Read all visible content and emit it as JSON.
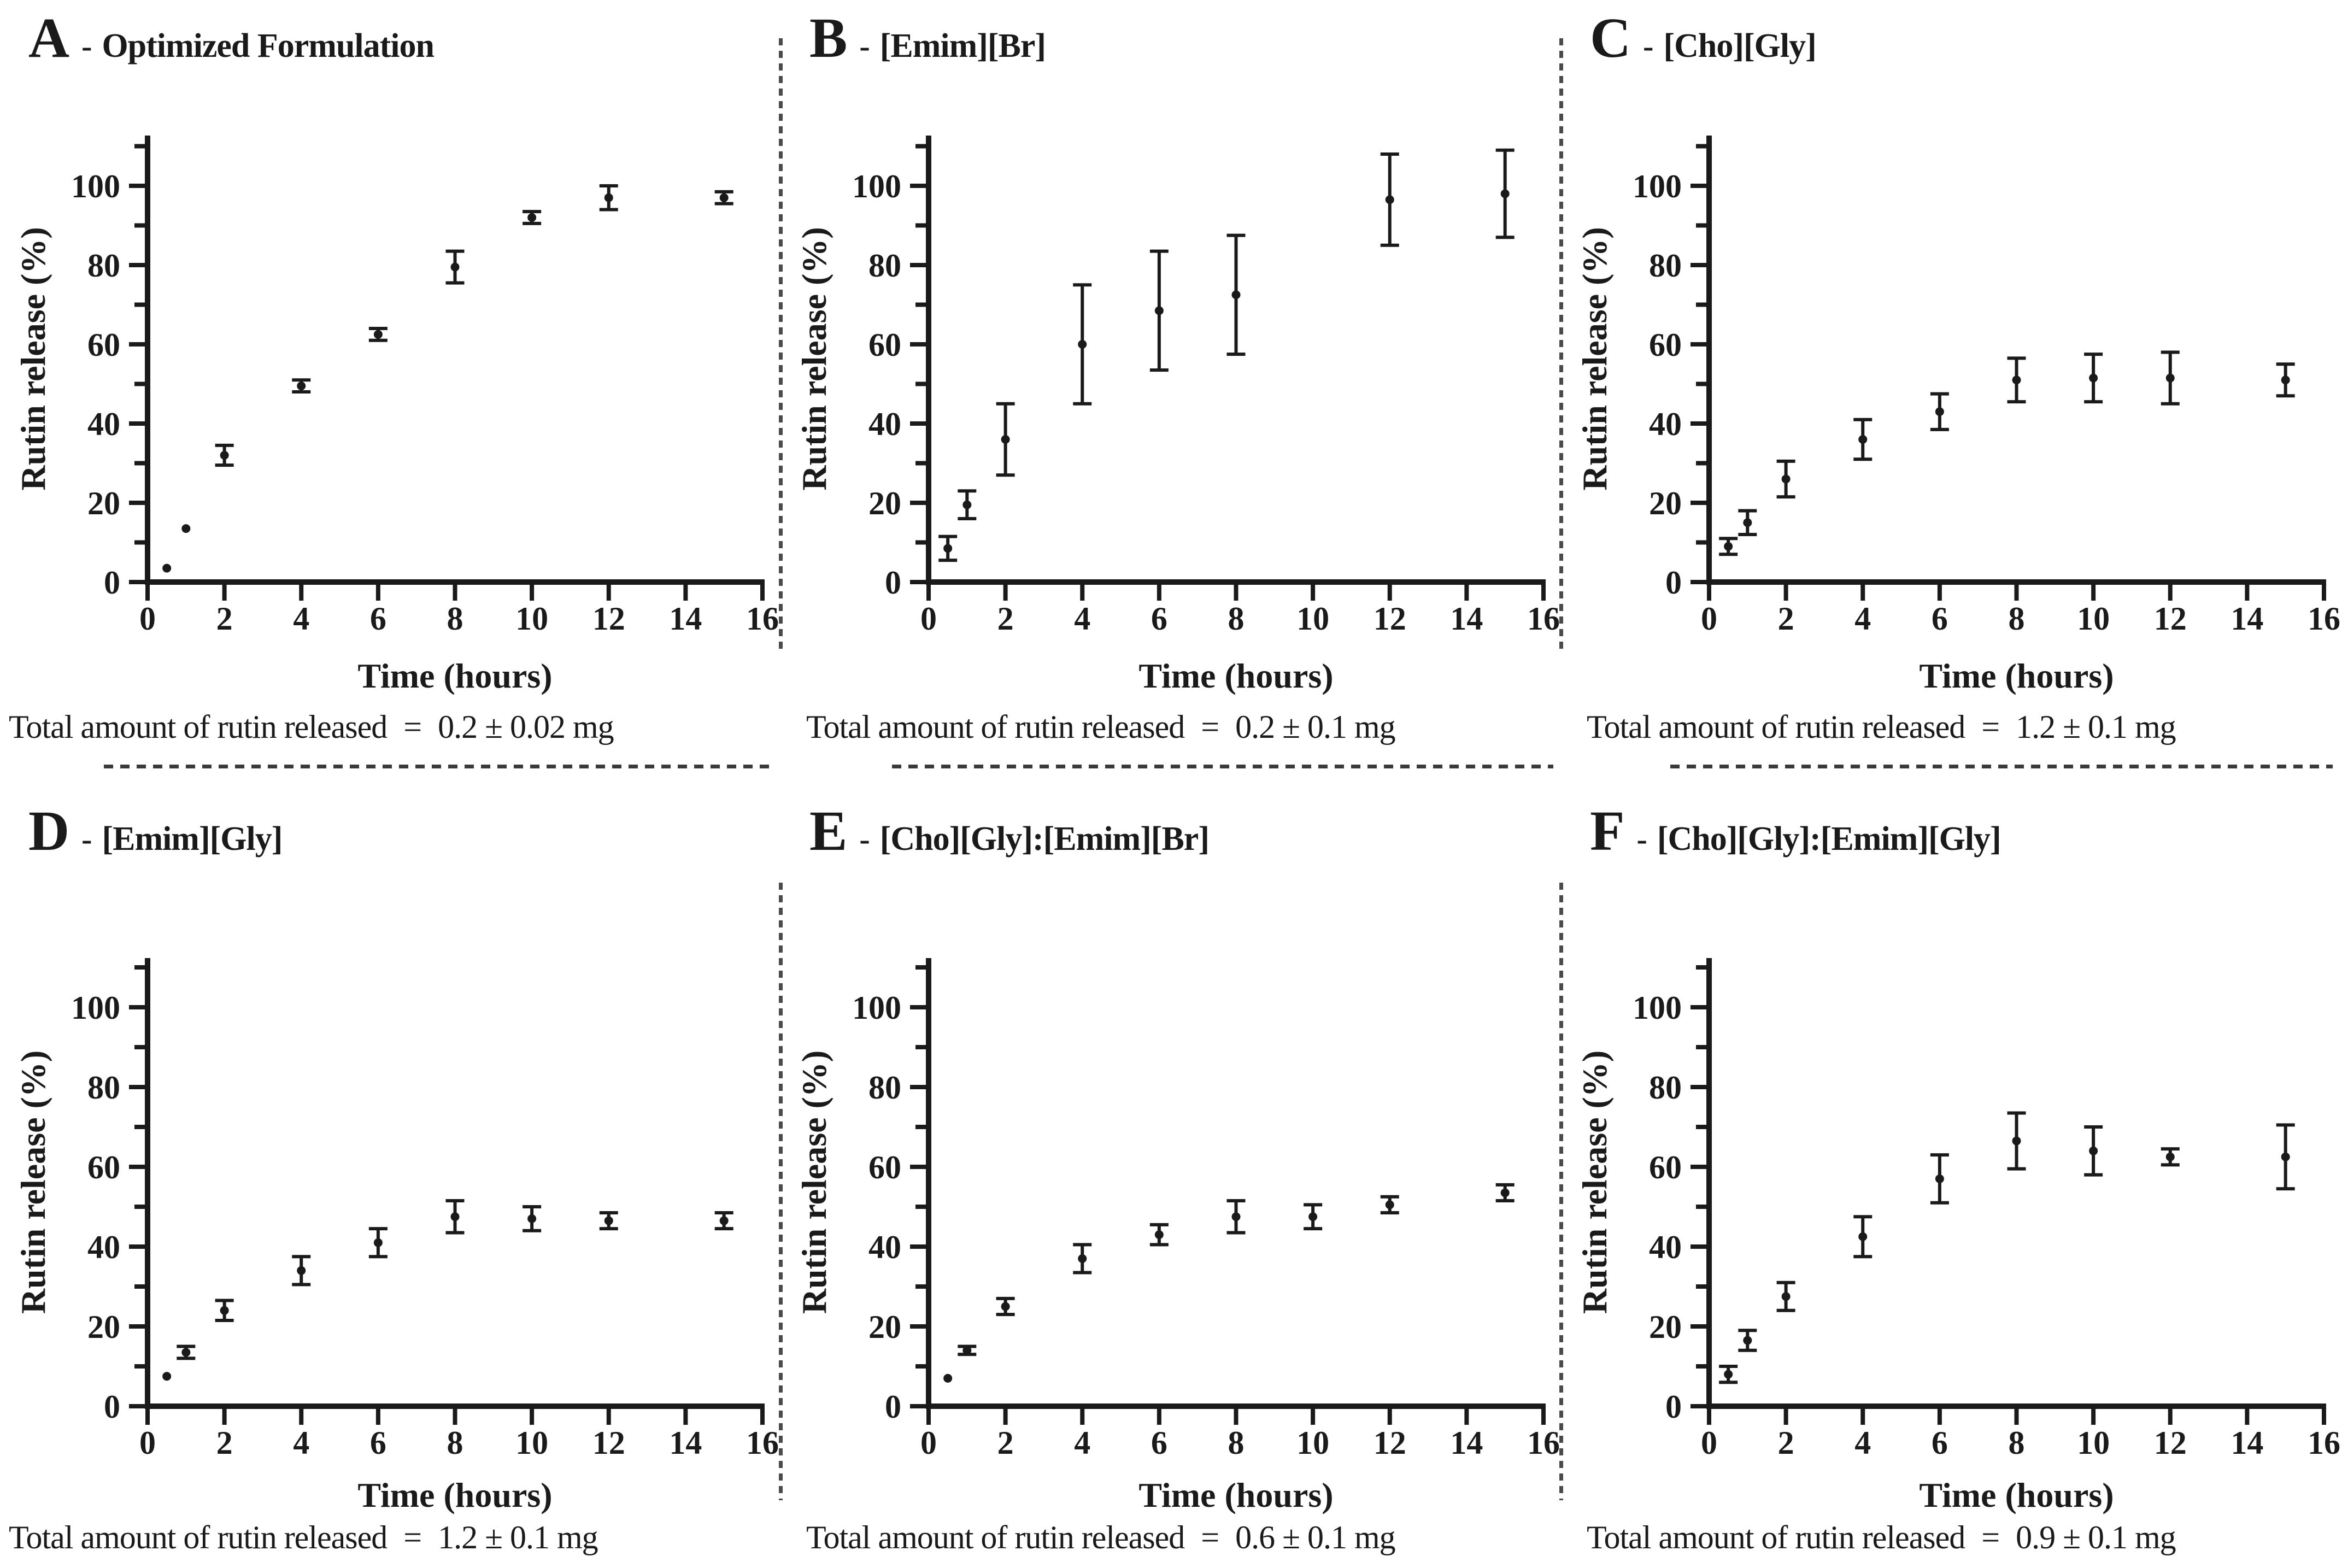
{
  "figure": {
    "title_separator": "-",
    "caption_prefix": "Total amount of rutin released",
    "caption_equals": "=",
    "colors": {
      "ink": "#1a1a1a",
      "background": "#ffffff"
    }
  },
  "chart_data": [
    {
      "type": "scatter",
      "panel": "A",
      "label": "Optimized Formulation",
      "row": "1",
      "xlabel": "Time (hours)",
      "ylabel": "Rutin release (%)",
      "xlim": [
        0,
        16
      ],
      "ylim": [
        0,
        110
      ],
      "x_ticks": [
        0,
        2,
        4,
        6,
        8,
        10,
        12,
        14,
        16
      ],
      "y_ticks": [
        0,
        20,
        40,
        60,
        80,
        100
      ],
      "y_minor_step": 10,
      "grid": false,
      "legend": "none",
      "x": [
        0.5,
        1,
        2,
        4,
        6,
        8,
        10,
        12,
        15
      ],
      "y": [
        3.5,
        13.5,
        32,
        49.5,
        62.5,
        79.5,
        92,
        97,
        97
      ],
      "yerr": [
        0.5,
        0.5,
        2.5,
        1.5,
        1.5,
        4,
        1.5,
        3,
        1.5
      ],
      "total": "0.2 ± 0.02 mg"
    },
    {
      "type": "scatter",
      "panel": "B",
      "label": "[Emim][Br]",
      "row": "1",
      "xlabel": "Time (hours)",
      "ylabel": "Rutin release (%)",
      "xlim": [
        0,
        16
      ],
      "ylim": [
        0,
        110
      ],
      "x_ticks": [
        0,
        2,
        4,
        6,
        8,
        10,
        12,
        14,
        16
      ],
      "y_ticks": [
        0,
        20,
        40,
        60,
        80,
        100
      ],
      "y_minor_step": 10,
      "grid": false,
      "legend": "none",
      "x": [
        0.5,
        1,
        2,
        4,
        6,
        8,
        12,
        15
      ],
      "y": [
        8.5,
        19.5,
        36,
        60,
        68.5,
        72.5,
        96.5,
        98
      ],
      "yerr": [
        3,
        3.5,
        9,
        15,
        15,
        15,
        11.5,
        11
      ],
      "total": "0.2 ± 0.1 mg"
    },
    {
      "type": "scatter",
      "panel": "C",
      "label": "[Cho][Gly]",
      "row": "1",
      "xlabel": "Time (hours)",
      "ylabel": "Rutin release (%)",
      "xlim": [
        0,
        16
      ],
      "ylim": [
        0,
        110
      ],
      "x_ticks": [
        0,
        2,
        4,
        6,
        8,
        10,
        12,
        14,
        16
      ],
      "y_ticks": [
        0,
        20,
        40,
        60,
        80,
        100
      ],
      "y_minor_step": 10,
      "grid": false,
      "legend": "none",
      "x": [
        0.5,
        1,
        2,
        4,
        6,
        8,
        10,
        12,
        15
      ],
      "y": [
        9,
        15,
        26,
        36,
        43,
        51,
        51.5,
        51.5,
        51
      ],
      "yerr": [
        2,
        3,
        4.5,
        5,
        4.5,
        5.5,
        6,
        6.5,
        4
      ],
      "total": "1.2 ± 0.1 mg"
    },
    {
      "type": "scatter",
      "panel": "D",
      "label": "[Emim][Gly]",
      "row": "2",
      "xlabel": "Time (hours)",
      "ylabel": "Rutin release (%)",
      "xlim": [
        0,
        16
      ],
      "ylim": [
        0,
        110
      ],
      "x_ticks": [
        0,
        2,
        4,
        6,
        8,
        10,
        12,
        14,
        16
      ],
      "y_ticks": [
        0,
        20,
        40,
        60,
        80,
        100
      ],
      "y_minor_step": 10,
      "grid": false,
      "legend": "none",
      "x": [
        0.5,
        1,
        2,
        4,
        6,
        8,
        10,
        12,
        15
      ],
      "y": [
        7.5,
        13.5,
        24,
        34,
        41,
        47.5,
        47,
        46.5,
        46.5
      ],
      "yerr": [
        0.5,
        1.5,
        2.5,
        3.5,
        3.5,
        4,
        3,
        2,
        2
      ],
      "total": "1.2 ± 0.1 mg"
    },
    {
      "type": "scatter",
      "panel": "E",
      "label": "[Cho][Gly]:[Emim][Br]",
      "row": "2",
      "xlabel": "Time (hours)",
      "ylabel": "Rutin release (%)",
      "xlim": [
        0,
        16
      ],
      "ylim": [
        0,
        110
      ],
      "x_ticks": [
        0,
        2,
        4,
        6,
        8,
        10,
        12,
        14,
        16
      ],
      "y_ticks": [
        0,
        20,
        40,
        60,
        80,
        100
      ],
      "y_minor_step": 10,
      "grid": false,
      "legend": "none",
      "x": [
        0.5,
        1,
        2,
        4,
        6,
        8,
        10,
        12,
        15
      ],
      "y": [
        7,
        14,
        25,
        37,
        43,
        47.5,
        47.5,
        50.5,
        53.5
      ],
      "yerr": [
        0.5,
        1,
        2,
        3.5,
        2.5,
        4,
        3,
        2,
        2
      ],
      "total": "0.6 ± 0.1 mg"
    },
    {
      "type": "scatter",
      "panel": "F",
      "label": "[Cho][Gly]:[Emim][Gly]",
      "row": "2",
      "xlabel": "Time (hours)",
      "ylabel": "Rutin release (%)",
      "xlim": [
        0,
        16
      ],
      "ylim": [
        0,
        110
      ],
      "x_ticks": [
        0,
        2,
        4,
        6,
        8,
        10,
        12,
        14,
        16
      ],
      "y_ticks": [
        0,
        20,
        40,
        60,
        80,
        100
      ],
      "y_minor_step": 10,
      "grid": false,
      "legend": "none",
      "x": [
        0.5,
        1,
        2,
        4,
        6,
        8,
        10,
        12,
        15
      ],
      "y": [
        8,
        16.5,
        27.5,
        42.5,
        57,
        66.5,
        64,
        62.5,
        62.5
      ],
      "yerr": [
        2,
        2.5,
        3.5,
        5,
        6,
        7,
        6,
        2,
        8
      ],
      "total": "0.9 ± 0.1 mg"
    }
  ]
}
